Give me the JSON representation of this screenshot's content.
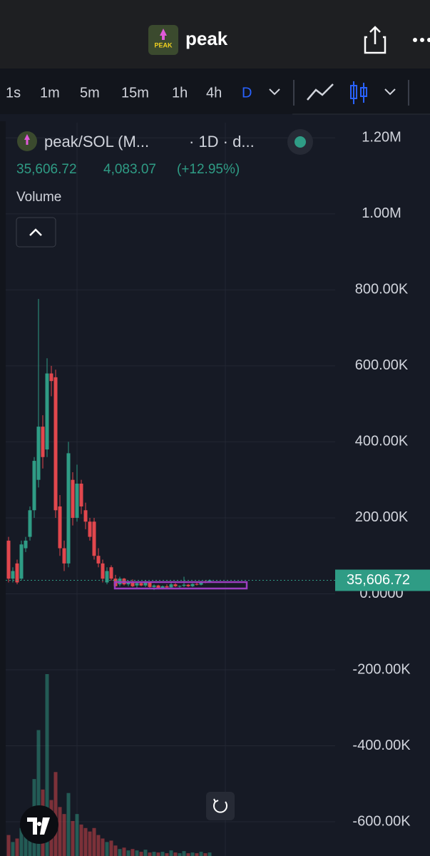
{
  "header": {
    "title": "peak",
    "timeframes": [
      "1s",
      "1m",
      "5m",
      "15m",
      "1h",
      "4h",
      "D"
    ]
  },
  "legend": {
    "symbol": "peak/SOL (M...",
    "interval": "· 1D · d...",
    "close": "35,606.72",
    "change": "4,083.07",
    "change_pct": "(+12.95%)",
    "volume": "Volume"
  },
  "chart_data": {
    "type": "candlestick",
    "open": [
      140000,
      40000,
      80000,
      40000,
      120000,
      150000,
      220000,
      300000,
      440000,
      380000,
      580000,
      570000,
      230000,
      120000,
      80000,
      300000,
      200000,
      290000,
      220000,
      190000,
      190000,
      100000,
      80000,
      30000,
      70000,
      40000,
      25000,
      40000,
      25000,
      30000,
      22000,
      28000,
      22000,
      30000,
      18000,
      22000,
      15000,
      20000,
      17000,
      25000,
      20000,
      21000,
      24000,
      20000,
      26000,
      24000,
      32000,
      31523.65
    ],
    "high": [
      150000,
      70000,
      90000,
      140000,
      150000,
      230000,
      360000,
      776000,
      470000,
      620000,
      600000,
      590000,
      260000,
      140000,
      400000,
      320000,
      340000,
      300000,
      240000,
      200000,
      200000,
      120000,
      90000,
      70000,
      75000,
      50000,
      45000,
      42000,
      35000,
      38000,
      30000,
      32000,
      35000,
      31000,
      25000,
      24000,
      22000,
      25000,
      30000,
      28000,
      22000,
      45000,
      26000,
      28000,
      30000,
      35000,
      36000,
      38000
    ],
    "low": [
      30000,
      30000,
      25000,
      35000,
      110000,
      140000,
      200000,
      280000,
      330000,
      360000,
      520000,
      200000,
      100000,
      60000,
      70000,
      180000,
      190000,
      210000,
      170000,
      140000,
      90000,
      70000,
      30000,
      25000,
      35000,
      20000,
      20000,
      22000,
      20000,
      18000,
      15000,
      20000,
      18000,
      15000,
      10000,
      12000,
      12000,
      15000,
      15000,
      18000,
      15000,
      18000,
      18000,
      18000,
      22000,
      22000,
      28000,
      29000
    ],
    "close": [
      40000,
      60000,
      30000,
      130000,
      140000,
      220000,
      350000,
      440000,
      360000,
      580000,
      560000,
      220000,
      120000,
      80000,
      370000,
      200000,
      290000,
      230000,
      190000,
      150000,
      100000,
      80000,
      40000,
      60000,
      40000,
      20000,
      40000,
      25000,
      30000,
      20000,
      28000,
      22000,
      30000,
      18000,
      22000,
      14000,
      20000,
      17000,
      25000,
      20000,
      21000,
      24000,
      20000,
      26000,
      24000,
      32000,
      30000,
      35606.72
    ],
    "volume": [
      30,
      20,
      25,
      40,
      45,
      60,
      110,
      180,
      95,
      260,
      80,
      120,
      70,
      60,
      90,
      50,
      60,
      45,
      40,
      35,
      40,
      30,
      25,
      20,
      22,
      15,
      10,
      12,
      8,
      10,
      8,
      6,
      9,
      5,
      6,
      5,
      6,
      4,
      8,
      5,
      4,
      7,
      4,
      5,
      4,
      6,
      4,
      5
    ],
    "up_color": "#2f9c85",
    "down_color": "#e2474d",
    "ylim": [
      -690000,
      1240000
    ],
    "yticks": [
      {
        "value": 1200000,
        "label": "1.20M"
      },
      {
        "value": 1000000,
        "label": "1.00M"
      },
      {
        "value": 800000,
        "label": "800.00K"
      },
      {
        "value": 600000,
        "label": "600.00K"
      },
      {
        "value": 400000,
        "label": "400.00K"
      },
      {
        "value": 200000,
        "label": "200.00K"
      },
      {
        "value": 0,
        "label": "0.0000"
      },
      {
        "value": -200000,
        "label": "-200.00K"
      },
      {
        "value": -400000,
        "label": "-400.00K"
      },
      {
        "value": -600000,
        "label": "-600.00K"
      }
    ],
    "last_price_label": "35,606.72",
    "grid": true
  }
}
